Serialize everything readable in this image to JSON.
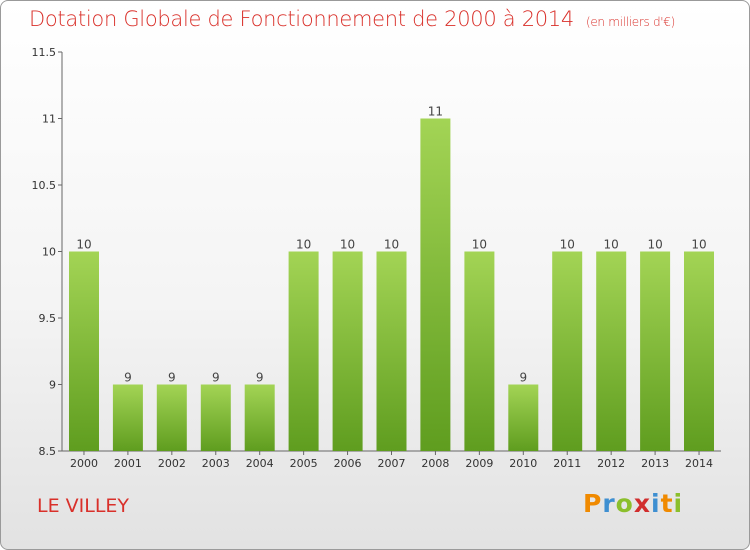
{
  "header": {
    "title": "Dotation Globale de Fonctionnement de 2000 à 2014",
    "subtitle": "(en milliers d'€)"
  },
  "footer": {
    "commune": "LE VILLEY",
    "logo": "Proxiti"
  },
  "colors": {
    "bar_top": "#a3d455",
    "bar_bottom": "#5f9d1f",
    "title": "#d9302a"
  },
  "chart_data": {
    "type": "bar",
    "title": "Dotation Globale de Fonctionnement de 2000 à 2014",
    "subtitle": "(en milliers d'€)",
    "xlabel": "",
    "ylabel": "",
    "categories": [
      "2000",
      "2001",
      "2002",
      "2003",
      "2004",
      "2005",
      "2006",
      "2007",
      "2008",
      "2009",
      "2010",
      "2011",
      "2012",
      "2013",
      "2014"
    ],
    "values": [
      10,
      9,
      9,
      9,
      9,
      10,
      10,
      10,
      11,
      10,
      9,
      10,
      10,
      10,
      10
    ],
    "data_labels": [
      "10",
      "9",
      "9",
      "9",
      "9",
      "10",
      "10",
      "10",
      "11",
      "10",
      "9",
      "10",
      "10",
      "10",
      "10"
    ],
    "ylim": [
      8.5,
      11.5
    ],
    "yticks": [
      8.5,
      9,
      9.5,
      10,
      10.5,
      11,
      11.5
    ],
    "ytick_labels": [
      "8.5",
      "9",
      "9.5",
      "10",
      "10.5",
      "11",
      "11.5"
    ],
    "grid": false,
    "legend": "none"
  }
}
